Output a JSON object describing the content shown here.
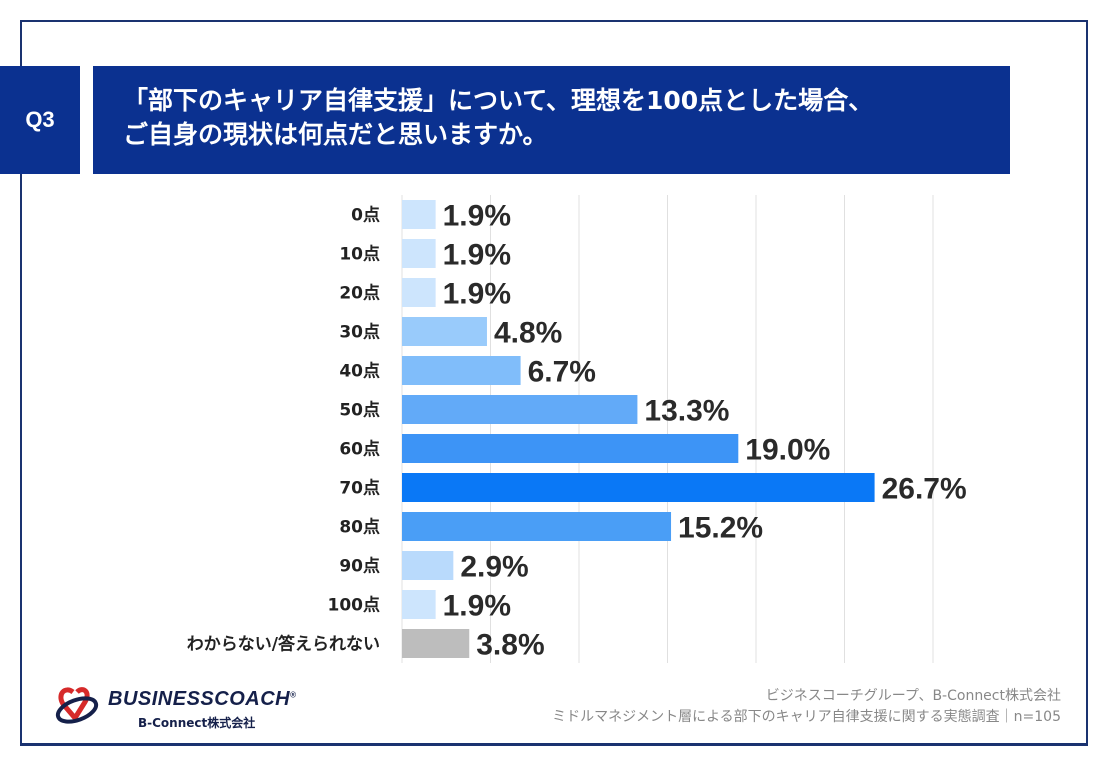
{
  "question": {
    "number": "Q3",
    "title_lines": [
      "「部下のキャリア自律支援」について、理想を100点とした場合、",
      "ご自身の現状は何点だと思いますか。"
    ]
  },
  "chart_data": {
    "type": "bar",
    "orientation": "horizontal",
    "categories": [
      "0点",
      "10点",
      "20点",
      "30点",
      "40点",
      "50点",
      "60点",
      "70点",
      "80点",
      "90点",
      "100点",
      "わからない/答えられない"
    ],
    "values": [
      1.9,
      1.9,
      1.9,
      4.8,
      6.7,
      13.3,
      19.0,
      26.7,
      15.2,
      2.9,
      1.9,
      3.8
    ],
    "value_labels": [
      "1.9%",
      "1.9%",
      "1.9%",
      "4.8%",
      "6.7%",
      "13.3%",
      "19.0%",
      "26.7%",
      "15.2%",
      "2.9%",
      "1.9%",
      "3.8%"
    ],
    "colors": [
      "#cde5fd",
      "#cde5fd",
      "#cde5fd",
      "#99cbfb",
      "#80bdfa",
      "#62aaf8",
      "#3d94f6",
      "#0a78f6",
      "#4a9ef6",
      "#b9dafc",
      "#cde5fd",
      "#bdbdbd"
    ],
    "xlim": [
      0,
      30
    ],
    "grid_step": 5,
    "grid": true,
    "xlabel": "",
    "ylabel": "",
    "unit": "%"
  },
  "footer": {
    "logo_brand": "BUSINESSCOACH",
    "logo_sub": "B-Connect株式会社",
    "source_lines": [
      "ビジネスコーチグループ、B-Connect株式会社",
      "ミドルマネジメント層による部下のキャリア自律支援に関する実態調査｜n=105"
    ]
  },
  "colors": {
    "navy": "#0b3190",
    "frame": "#1a3270"
  }
}
